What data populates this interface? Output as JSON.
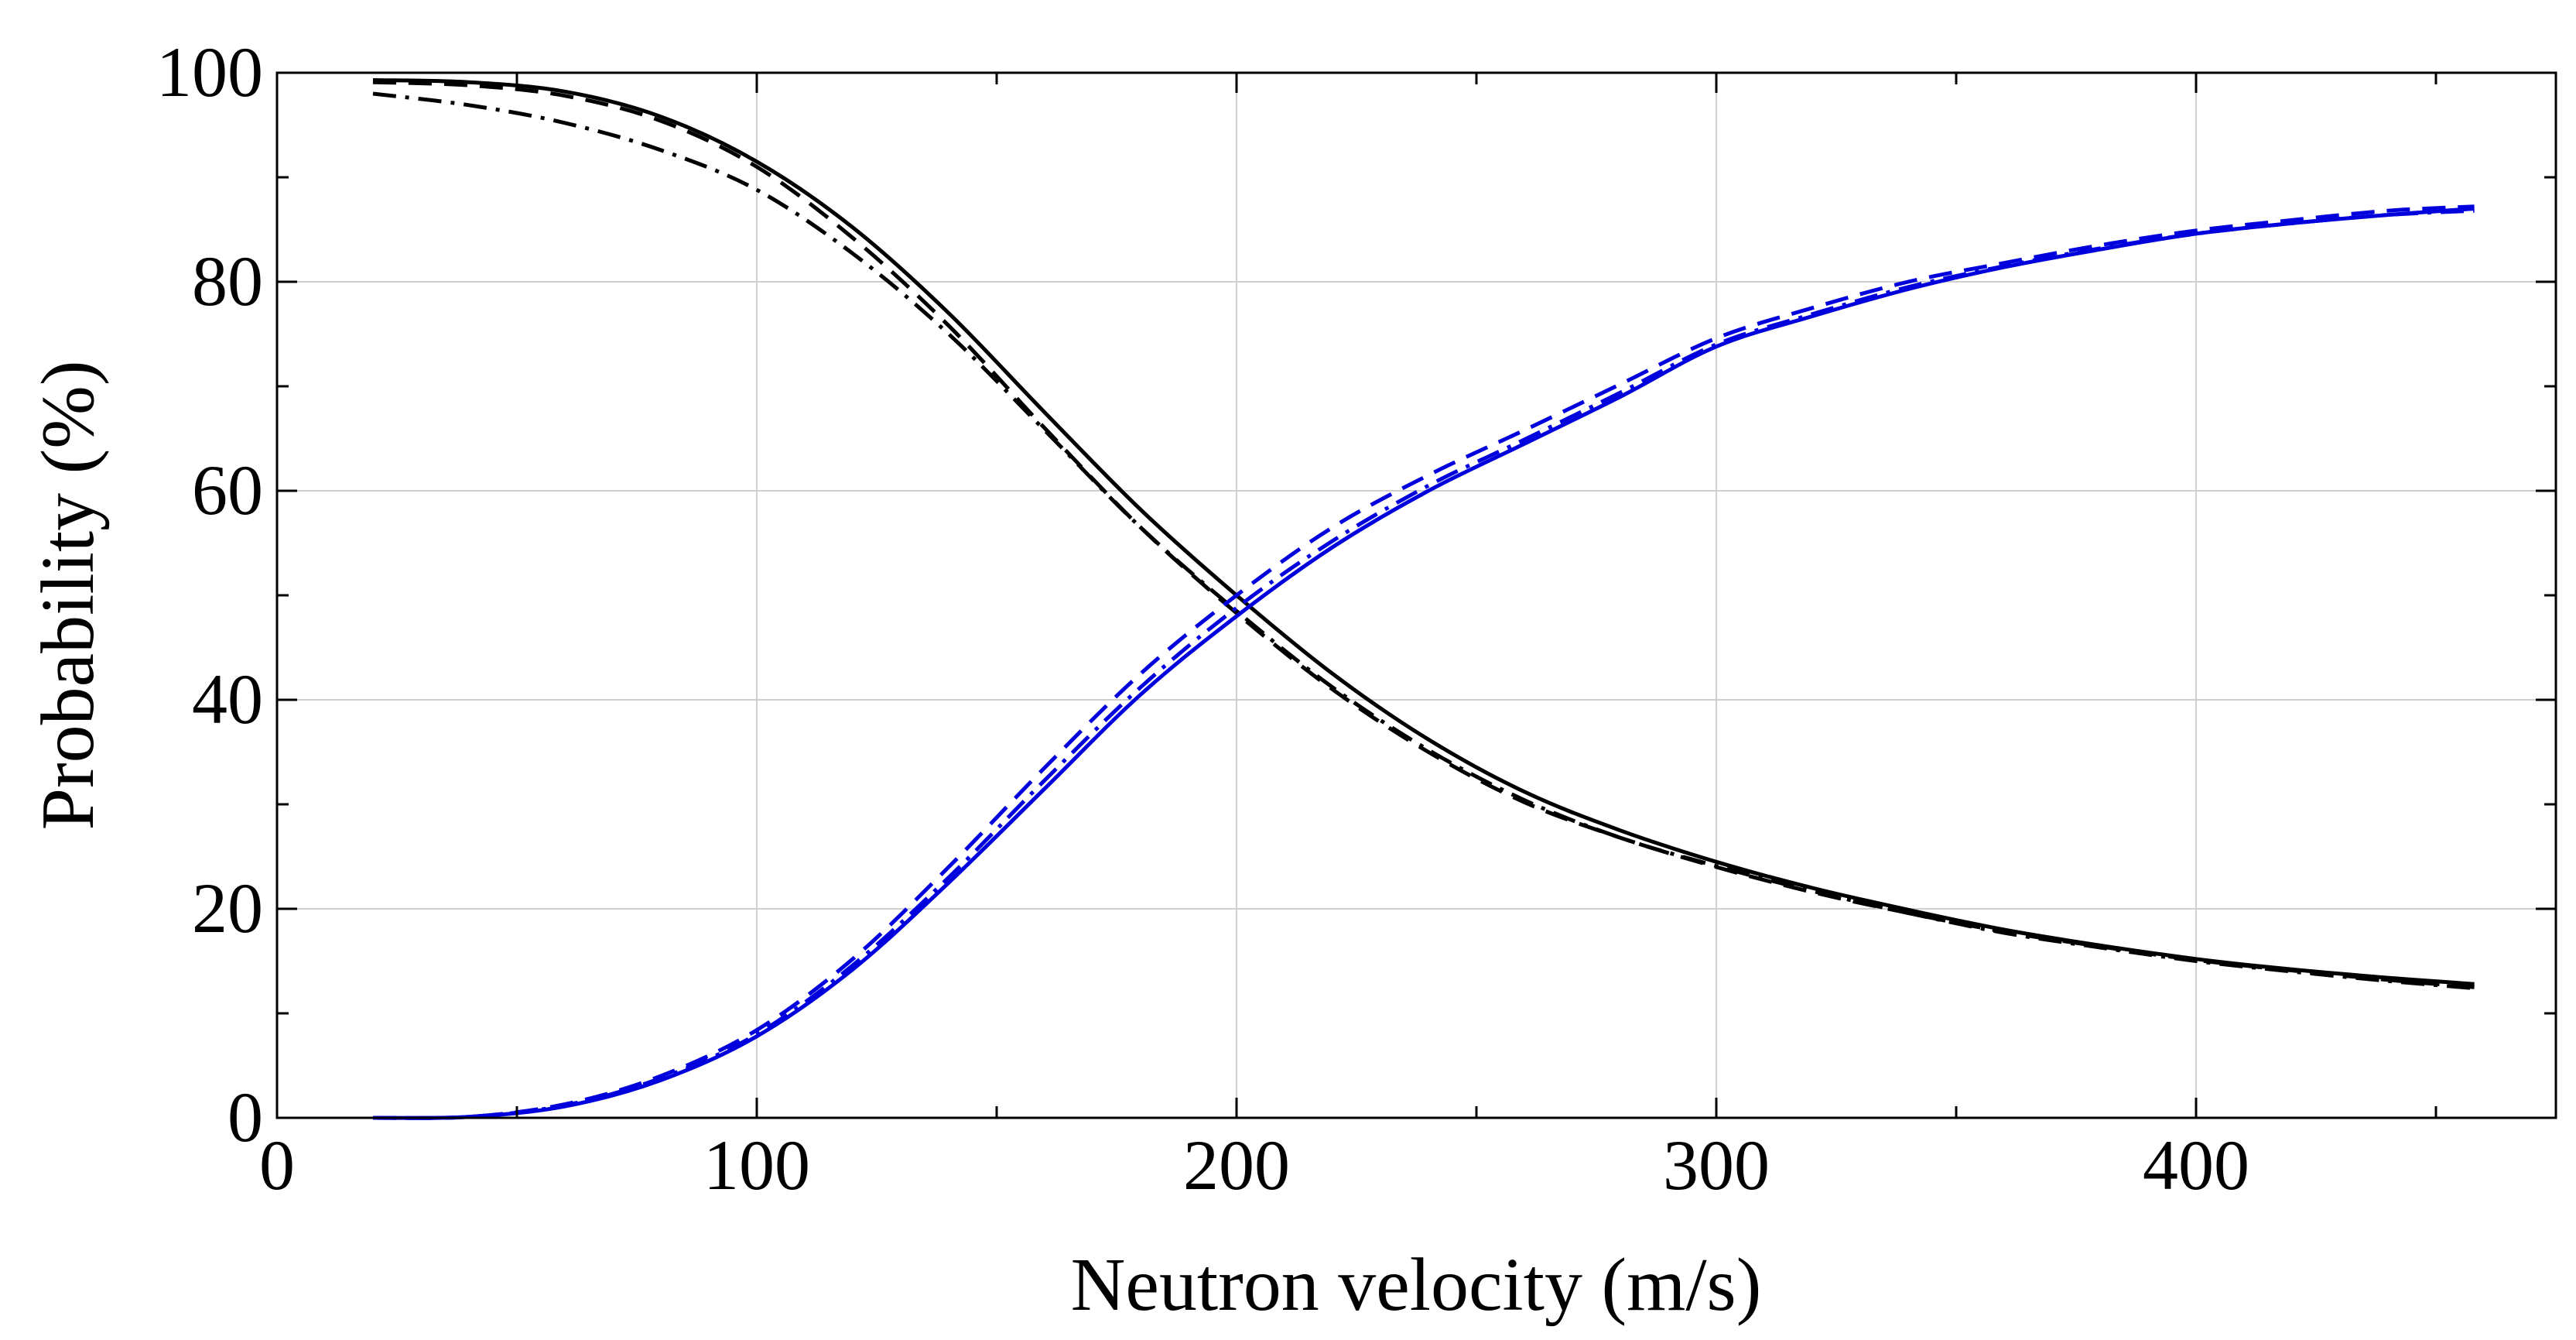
{
  "chart_data": {
    "type": "line",
    "title": "",
    "xlabel": "Neutron velocity (m/s)",
    "ylabel": "Probability (%)",
    "xlim": [
      0,
      475
    ],
    "ylim": [
      0,
      100
    ],
    "x_major_ticks": [
      0,
      100,
      200,
      300,
      400
    ],
    "x_minor_ticks": [
      50,
      150,
      250,
      350,
      450
    ],
    "y_major_ticks": [
      0,
      20,
      40,
      60,
      80,
      100
    ],
    "y_minor_ticks": [
      10,
      30,
      50,
      70,
      90
    ],
    "x_tick_labels": [
      "0",
      "100",
      "200",
      "300",
      "400"
    ],
    "y_tick_labels": [
      "0",
      "20",
      "40",
      "60",
      "80",
      "100"
    ],
    "grid": true,
    "series": [
      {
        "name": "black-solid",
        "color": "#000000",
        "style": "solid",
        "x": [
          20,
          40,
          60,
          80,
          100,
          120,
          140,
          160,
          180,
          200,
          220,
          240,
          260,
          280,
          300,
          320,
          340,
          360,
          380,
          400,
          420,
          440,
          458
        ],
        "y": [
          99.3,
          99.1,
          98.2,
          95.8,
          91.5,
          85.2,
          77.0,
          67.5,
          58.2,
          50.0,
          42.5,
          36.2,
          31.2,
          27.5,
          24.5,
          22.0,
          19.9,
          18.0,
          16.5,
          15.2,
          14.2,
          13.4,
          12.8
        ]
      },
      {
        "name": "black-dashed",
        "color": "#000000",
        "style": "dashed",
        "x": [
          20,
          40,
          60,
          80,
          100,
          120,
          140,
          160,
          180,
          200,
          220,
          240,
          260,
          280,
          300,
          320,
          340,
          360,
          380,
          400,
          420,
          440,
          458
        ],
        "y": [
          99.1,
          98.8,
          97.8,
          95.4,
          91.0,
          84.2,
          75.8,
          66.0,
          56.5,
          48.3,
          41.0,
          35.0,
          30.2,
          26.8,
          24.0,
          21.6,
          19.6,
          17.8,
          16.4,
          15.1,
          14.1,
          13.2,
          12.5
        ]
      },
      {
        "name": "black-dashdot",
        "color": "#000000",
        "style": "dashdot",
        "x": [
          20,
          40,
          60,
          80,
          100,
          120,
          140,
          160,
          180,
          200,
          220,
          240,
          260,
          280,
          300,
          320,
          340,
          360,
          380,
          400,
          420,
          440,
          458
        ],
        "y": [
          98.0,
          96.9,
          95.2,
          92.6,
          88.8,
          82.7,
          75.0,
          65.8,
          56.5,
          48.5,
          41.2,
          35.2,
          30.4,
          26.8,
          24.1,
          21.7,
          19.6,
          17.7,
          16.3,
          15.0,
          14.0,
          13.1,
          12.4
        ]
      },
      {
        "name": "blue-solid",
        "color": "#0000dd",
        "style": "solid",
        "x": [
          20,
          40,
          60,
          80,
          100,
          120,
          140,
          160,
          180,
          200,
          220,
          240,
          260,
          280,
          300,
          320,
          340,
          360,
          380,
          400,
          420,
          440,
          458
        ],
        "y": [
          0.0,
          0.1,
          1.1,
          3.6,
          7.8,
          14.2,
          22.5,
          31.5,
          40.5,
          48.0,
          54.6,
          60.0,
          64.5,
          69.0,
          73.8,
          76.7,
          79.3,
          81.4,
          83.1,
          84.6,
          85.6,
          86.4,
          87.0
        ]
      },
      {
        "name": "blue-dashed",
        "color": "#0000dd",
        "style": "dashed",
        "x": [
          20,
          40,
          60,
          80,
          100,
          120,
          140,
          160,
          180,
          200,
          220,
          240,
          260,
          280,
          300,
          320,
          340,
          360,
          380,
          400,
          420,
          440,
          458
        ],
        "y": [
          0.0,
          0.1,
          1.3,
          4.0,
          8.4,
          15.2,
          24.0,
          33.5,
          42.5,
          50.0,
          56.5,
          61.5,
          65.8,
          70.2,
          74.6,
          77.5,
          80.0,
          81.8,
          83.5,
          84.9,
          85.9,
          86.8,
          87.2
        ]
      },
      {
        "name": "blue-dashdot",
        "color": "#0000dd",
        "style": "dashdot",
        "x": [
          20,
          40,
          60,
          80,
          100,
          120,
          140,
          160,
          180,
          200,
          220,
          240,
          260,
          280,
          300,
          320,
          340,
          360,
          380,
          400,
          420,
          440,
          458
        ],
        "y": [
          0.0,
          0.1,
          1.2,
          3.8,
          8.0,
          14.6,
          23.0,
          32.3,
          41.2,
          48.8,
          55.2,
          60.5,
          64.9,
          69.4,
          74.0,
          76.9,
          79.5,
          81.5,
          83.2,
          84.6,
          85.6,
          86.4,
          86.8
        ]
      }
    ]
  }
}
